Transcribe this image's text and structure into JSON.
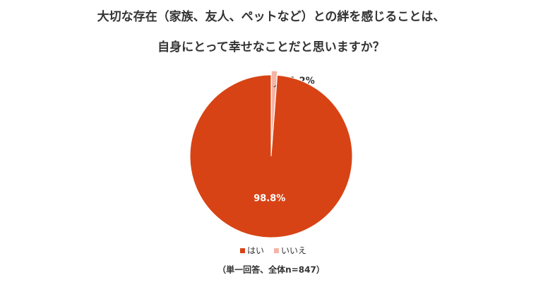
{
  "chart_data": {
    "type": "pie",
    "title": [
      "大切な存在（家族、友人、ペットなど）との絆を感じることは、",
      "自身にとって幸せなことだと思いますか？"
    ],
    "categories": [
      "はい",
      "いいえ"
    ],
    "values": [
      98.8,
      1.2
    ],
    "value_labels": [
      "98.8%",
      "1.2%"
    ],
    "colors": [
      "#d84315",
      "#f4b4a6"
    ],
    "legend": "bottom",
    "note": "（単一回答、全体n=847）"
  }
}
